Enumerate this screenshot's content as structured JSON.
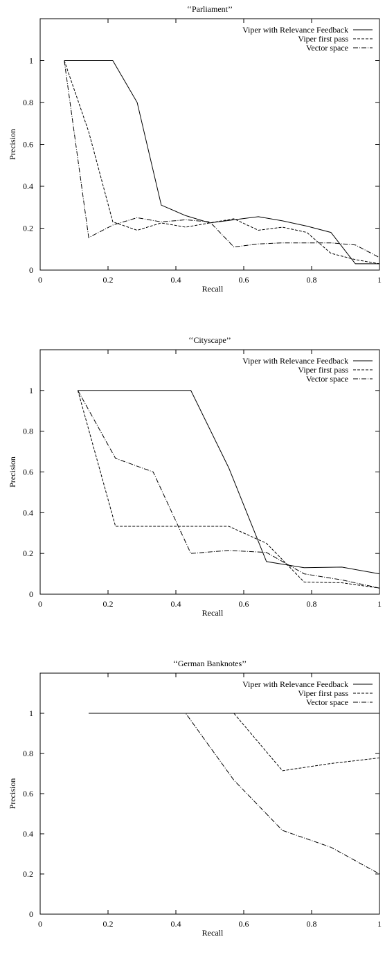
{
  "chart_data": [
    {
      "type": "line",
      "title": "‘‘Parliament’’",
      "xlabel": "Recall",
      "ylabel": "Precision",
      "xlim": [
        0,
        1
      ],
      "ylim": [
        0,
        1.2
      ],
      "xticks": [
        "0",
        "0.2",
        "0.4",
        "0.6",
        "0.8",
        "1"
      ],
      "yticks": [
        "0",
        "0.2",
        "0.4",
        "0.6",
        "0.8",
        "1"
      ],
      "legend_position": "top-right",
      "grid": false,
      "series": [
        {
          "name": "Viper with Relevance Feedback",
          "style": "solid",
          "x": [
            0.071,
            0.214,
            0.286,
            0.357,
            0.429,
            0.5,
            0.571,
            0.643,
            0.714,
            0.786,
            0.857,
            0.929,
            1.0
          ],
          "y": [
            1.0,
            1.0,
            0.8,
            0.31,
            0.26,
            0.225,
            0.24,
            0.255,
            0.235,
            0.21,
            0.18,
            0.03,
            0.03
          ]
        },
        {
          "name": "Viper first pass",
          "style": "dashed",
          "x": [
            0.071,
            0.143,
            0.214,
            0.286,
            0.357,
            0.429,
            0.5,
            0.571,
            0.643,
            0.714,
            0.786,
            0.857,
            0.929,
            1.0
          ],
          "y": [
            1.0,
            0.66,
            0.23,
            0.19,
            0.225,
            0.205,
            0.225,
            0.245,
            0.19,
            0.205,
            0.18,
            0.08,
            0.05,
            0.03
          ]
        },
        {
          "name": "Vector space",
          "style": "dashdot",
          "x": [
            0.071,
            0.143,
            0.214,
            0.286,
            0.357,
            0.429,
            0.5,
            0.571,
            0.643,
            0.714,
            0.786,
            0.857,
            0.929,
            1.0
          ],
          "y": [
            1.0,
            0.155,
            0.215,
            0.25,
            0.23,
            0.24,
            0.23,
            0.11,
            0.125,
            0.13,
            0.13,
            0.13,
            0.12,
            0.06
          ]
        }
      ]
    },
    {
      "type": "line",
      "title": "‘‘Cityscape’’",
      "xlabel": "Recall",
      "ylabel": "Precision",
      "xlim": [
        0,
        1
      ],
      "ylim": [
        0,
        1.2
      ],
      "xticks": [
        "0",
        "0.2",
        "0.4",
        "0.6",
        "0.8",
        "1"
      ],
      "yticks": [
        "0",
        "0.2",
        "0.4",
        "0.6",
        "0.8",
        "1"
      ],
      "legend_position": "top-right",
      "grid": false,
      "series": [
        {
          "name": "Viper with Relevance Feedback",
          "style": "solid",
          "x": [
            0.111,
            0.444,
            0.556,
            0.667,
            0.778,
            0.889,
            1.0
          ],
          "y": [
            1.0,
            1.0,
            0.62,
            0.16,
            0.13,
            0.133,
            0.1
          ]
        },
        {
          "name": "Viper first pass",
          "style": "dashed",
          "x": [
            0.111,
            0.222,
            0.333,
            0.444,
            0.556,
            0.667,
            0.778,
            0.889,
            1.0
          ],
          "y": [
            1.0,
            0.333,
            0.333,
            0.333,
            0.333,
            0.25,
            0.06,
            0.056,
            0.03
          ]
        },
        {
          "name": "Vector space",
          "style": "dashdot",
          "x": [
            0.111,
            0.222,
            0.333,
            0.444,
            0.556,
            0.667,
            0.778,
            0.889,
            1.0
          ],
          "y": [
            1.0,
            0.667,
            0.6,
            0.2,
            0.215,
            0.205,
            0.1,
            0.07,
            0.03
          ]
        }
      ]
    },
    {
      "type": "line",
      "title": "‘‘German Banknotes’’",
      "xlabel": "Recall",
      "ylabel": "Precision",
      "xlim": [
        0,
        1
      ],
      "ylim": [
        0,
        1.2
      ],
      "xticks": [
        "0",
        "0.2",
        "0.4",
        "0.6",
        "0.8",
        "1"
      ],
      "yticks": [
        "0",
        "0.2",
        "0.4",
        "0.6",
        "0.8",
        "1"
      ],
      "legend_position": "top-right",
      "grid": false,
      "series": [
        {
          "name": "Viper with Relevance Feedback",
          "style": "solid",
          "x": [
            0.143,
            1.0
          ],
          "y": [
            1.0,
            1.0
          ]
        },
        {
          "name": "Viper first pass",
          "style": "dashed",
          "x": [
            0.143,
            0.571,
            0.714,
            0.857,
            1.0
          ],
          "y": [
            1.0,
            1.0,
            0.714,
            0.75,
            0.778
          ]
        },
        {
          "name": "Vector space",
          "style": "dashdot",
          "x": [
            0.143,
            0.429,
            0.571,
            0.714,
            0.857,
            1.0
          ],
          "y": [
            1.0,
            1.0,
            0.667,
            0.417,
            0.333,
            0.2
          ]
        }
      ]
    }
  ]
}
